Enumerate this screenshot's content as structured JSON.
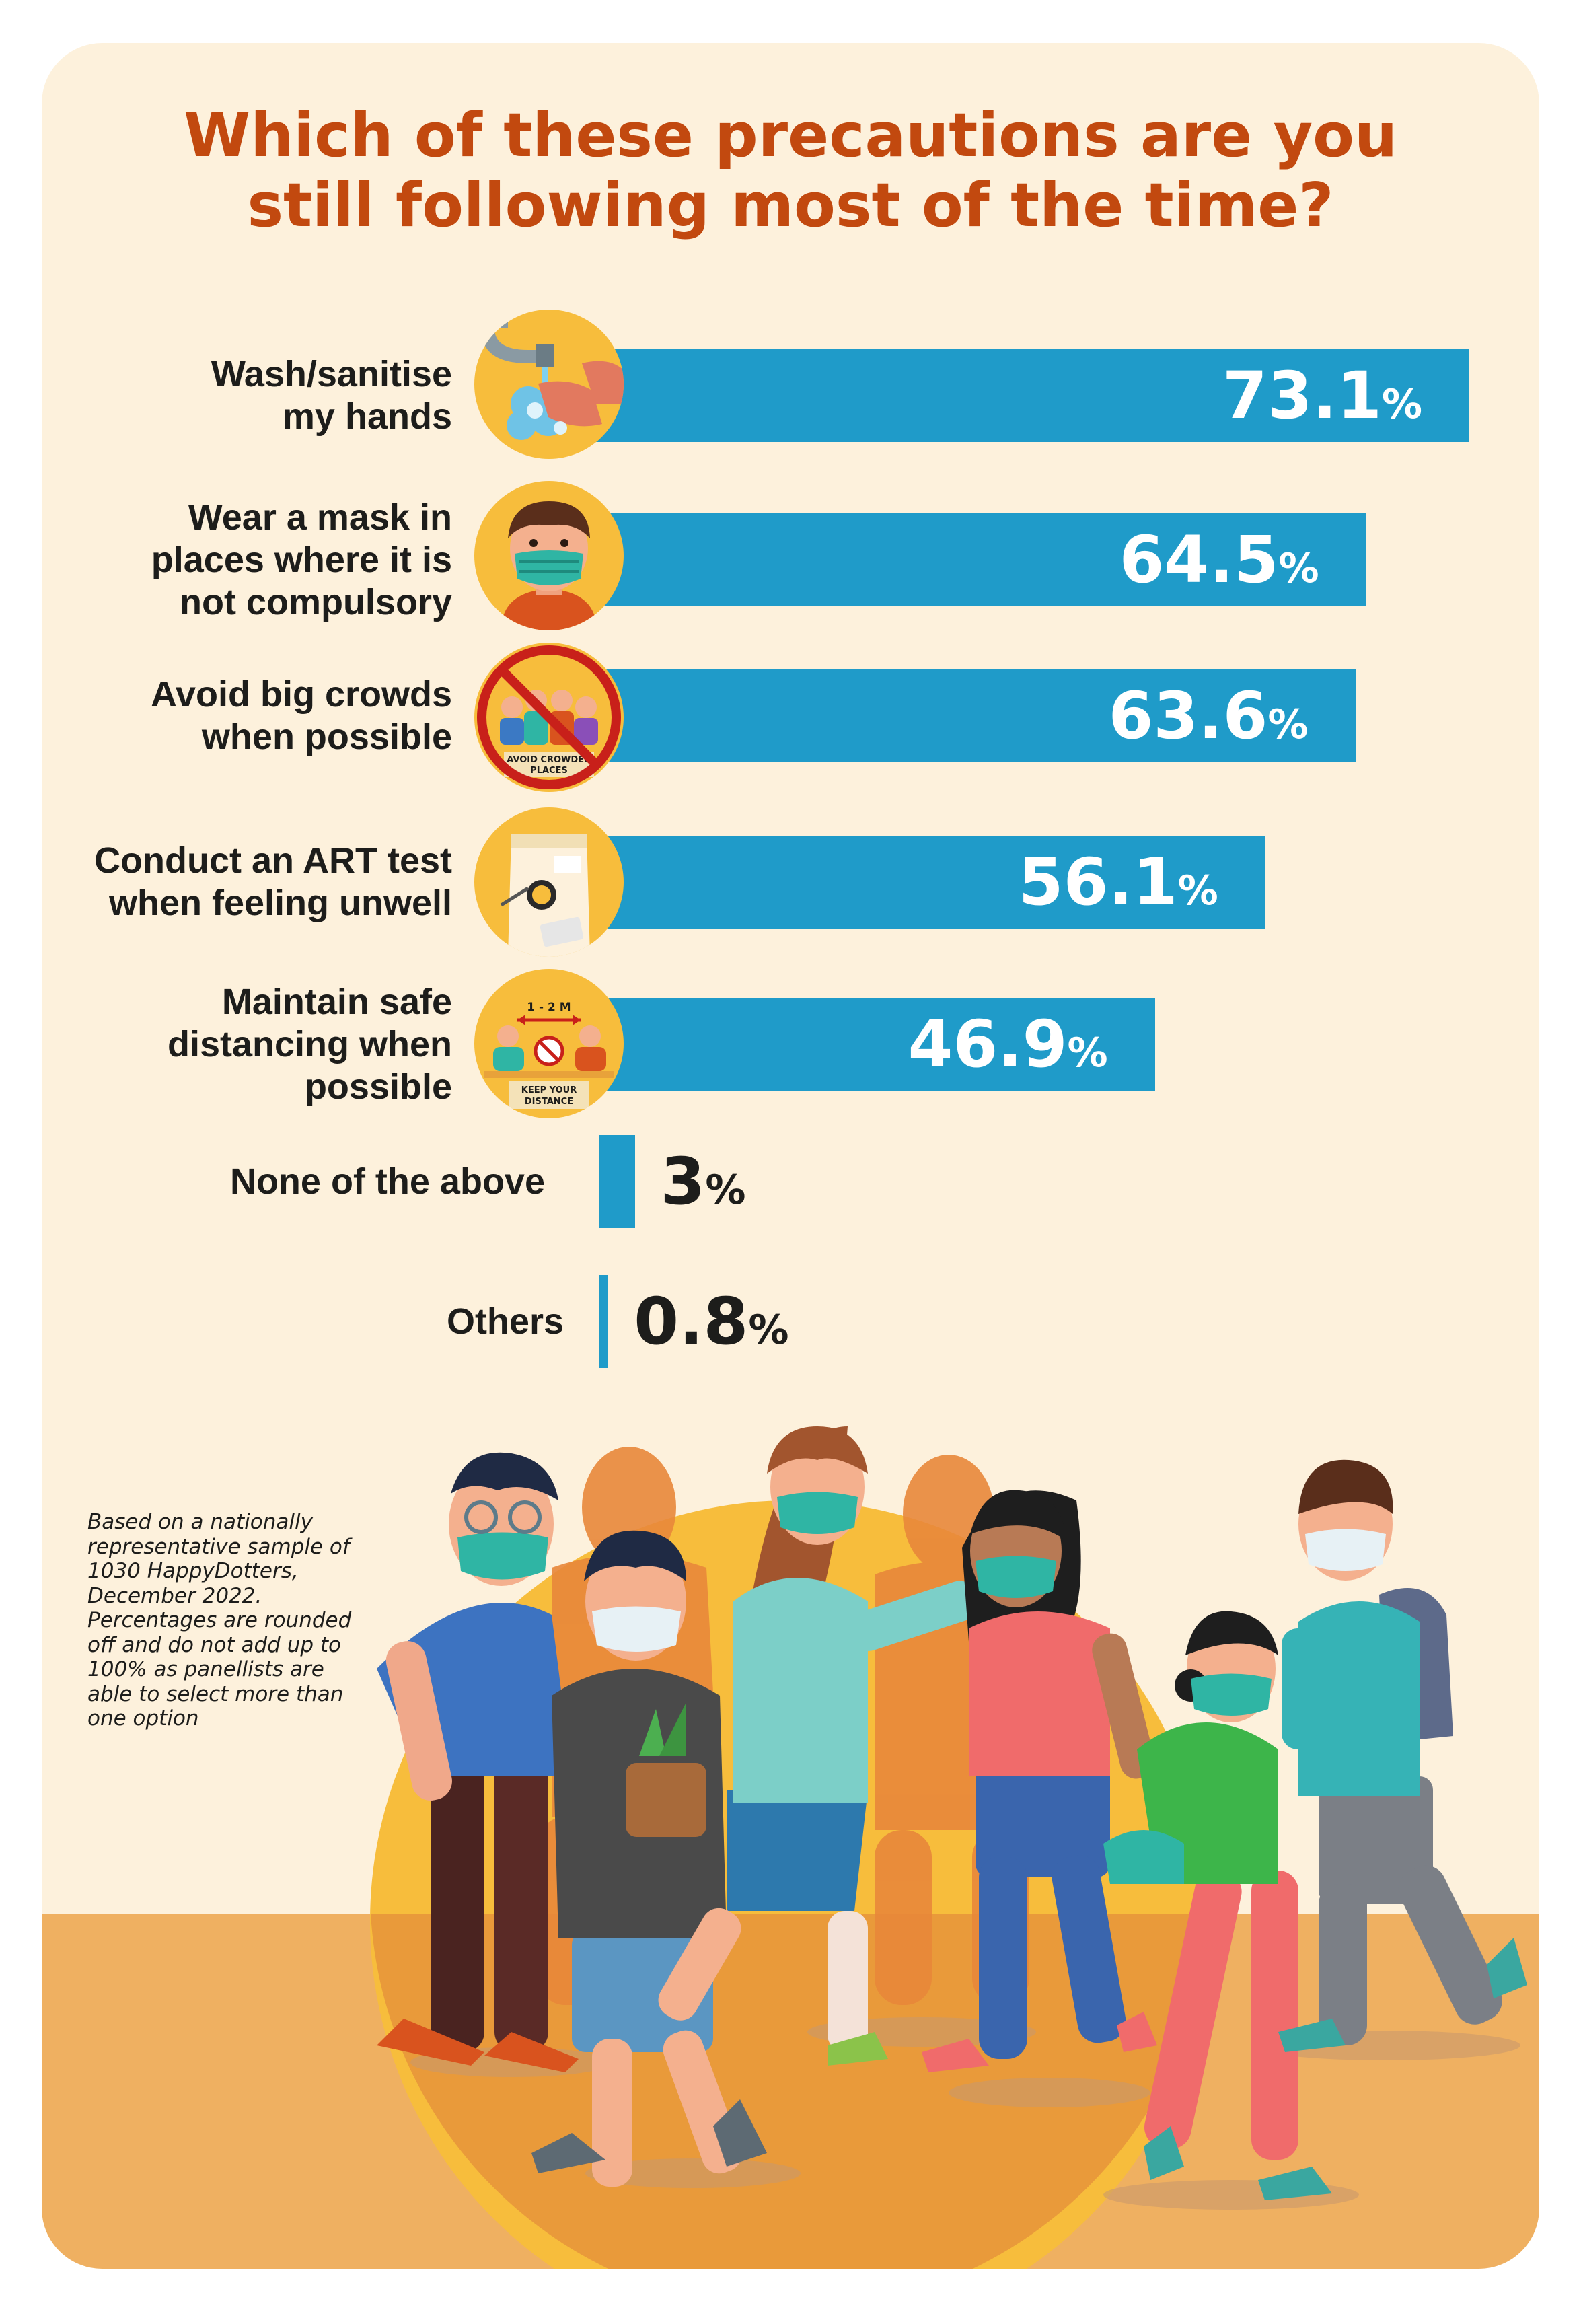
{
  "chart_data": {
    "type": "bar",
    "orientation": "horizontal",
    "title": "Which of these precautions are you still following most of the time?",
    "title_lines": [
      "Which of these precautions are you",
      "still following most of the time?"
    ],
    "categories": [
      "Wash/sanitise my hands",
      "Wear a mask in places where it is not compulsory",
      "Avoid big crowds when possible",
      "Conduct an ART test when feeling unwell",
      "Maintain safe distancing when possible",
      "None of the above",
      "Others"
    ],
    "category_lines": [
      [
        "Wash/sanitise",
        "my hands"
      ],
      [
        "Wear a mask in",
        "places where it is",
        "not compulsory"
      ],
      [
        "Avoid big crowds",
        "when possible"
      ],
      [
        "Conduct an ART test",
        "when feeling unwell"
      ],
      [
        "Maintain safe",
        "distancing when",
        "possible"
      ],
      [
        "None of the above"
      ],
      [
        "Others"
      ]
    ],
    "values": [
      73.1,
      64.5,
      63.6,
      56.1,
      46.9,
      3,
      0.8
    ],
    "value_labels": [
      "73.1",
      "64.5",
      "63.6",
      "56.1",
      "46.9",
      "3",
      "0.8"
    ],
    "unit": "%",
    "bar_color": "#1f9bc9",
    "title_color": "#c2490f"
  },
  "icons": [
    "hand-washing-icon",
    "face-mask-person-icon",
    "avoid-crowded-places-icon",
    "art-test-kit-icon",
    "keep-your-distance-icon"
  ],
  "icon_texts": {
    "crowd_sign": [
      "AVOID CROWDED",
      "PLACES"
    ],
    "distance_range": "1 - 2 M",
    "distance_sign": [
      "KEEP YOUR",
      "DISTANCE"
    ]
  },
  "footnote": [
    "Based on a nationally",
    "representative sample of",
    "1030 HappyDotters,",
    "December 2022.",
    "Percentages are rounded",
    "off and do not add up to",
    "100% as panellists are",
    "able to select more than",
    "one option"
  ],
  "colors": {
    "background": "#fdf1dc",
    "ground": "#efb061",
    "sun": "#f7bd3c"
  }
}
